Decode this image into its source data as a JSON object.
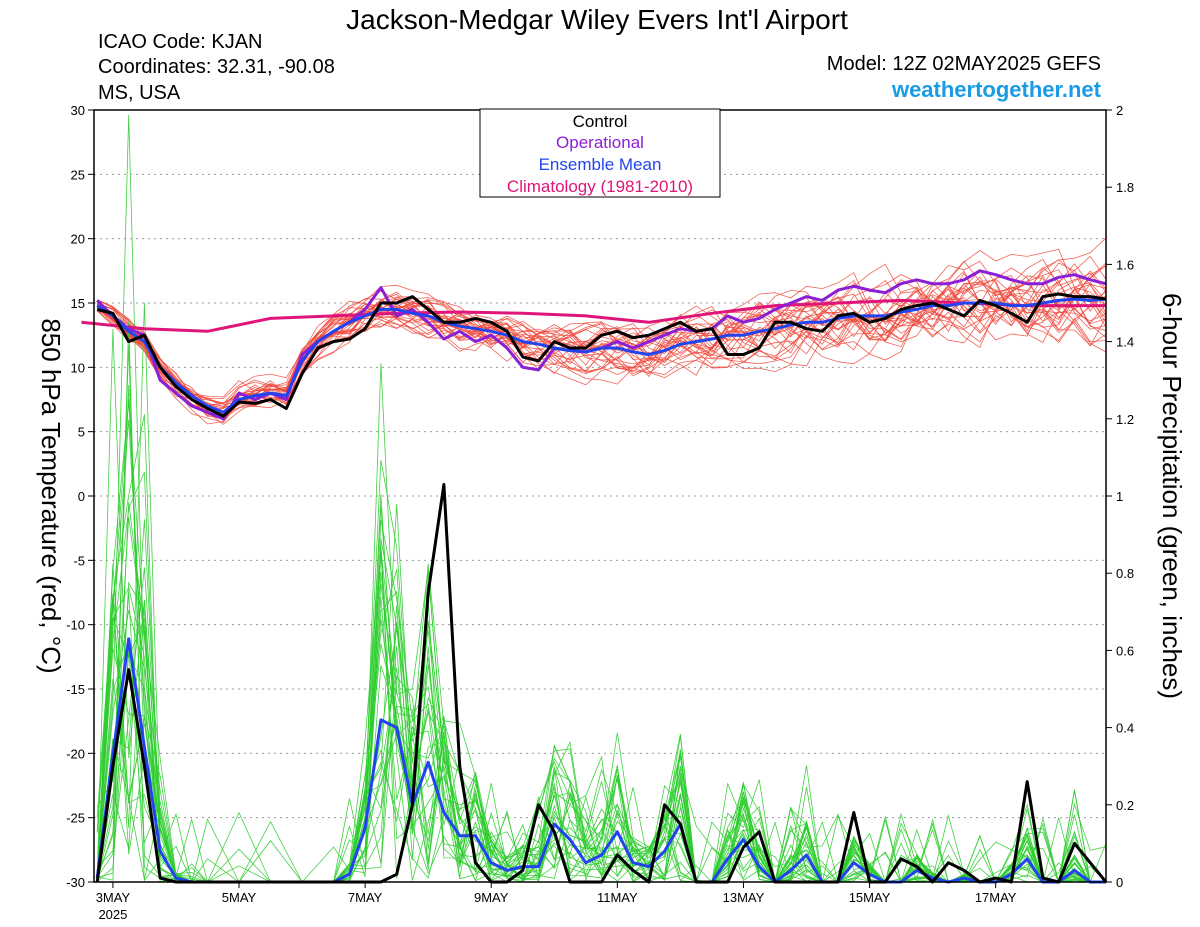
{
  "header": {
    "title": "Jackson-Medgar Wiley Evers Int'l Airport",
    "icao": "ICAO Code: KJAN",
    "coords": "Coordinates: 32.31, -90.08",
    "region": "MS, USA",
    "model": "Model: 12Z 02MAY2025 GEFS",
    "site": "weathertogether.net"
  },
  "colors": {
    "control": "#000000",
    "operational": "#8a1fd6",
    "ensemble_mean": "#2244ee",
    "climatology": "#e0157a",
    "members_temp": "#f0473a",
    "members_precip": "#2ecc2e",
    "brand": "#1a9be6"
  },
  "chart_data": {
    "type": "line",
    "left_axis": {
      "label": "850 hPa Temperature (red, °C)",
      "range": [
        -30,
        30
      ],
      "ticks": [
        "30",
        "25",
        "20",
        "15",
        "10",
        "5",
        "0",
        "-5",
        "-10",
        "-15",
        "-20",
        "-25",
        "-30"
      ]
    },
    "right_axis": {
      "label": "6-hour Precipitation (green, inches)",
      "range": [
        0,
        2
      ],
      "ticks": [
        "2",
        "1.8",
        "1.6",
        "1.4",
        "1.2",
        "1",
        "0.8",
        "0.6",
        "0.4",
        "0.2",
        "0"
      ]
    },
    "x_axis": {
      "unit": "days after 12Z 02MAY2025",
      "range": [
        0.2,
        16.25
      ],
      "ticks": [
        {
          "label": "3MAY",
          "sub": "2025",
          "x": 0.5
        },
        {
          "label": "5MAY",
          "x": 2.5
        },
        {
          "label": "7MAY",
          "x": 4.5
        },
        {
          "label": "9MAY",
          "x": 6.5
        },
        {
          "label": "11MAY",
          "x": 8.5
        },
        {
          "label": "13MAY",
          "x": 10.5
        },
        {
          "label": "15MAY",
          "x": 12.5
        },
        {
          "label": "17MAY",
          "x": 14.5
        }
      ]
    },
    "grid": "horizontal dotted",
    "legend": {
      "placement": "top-center",
      "entries": [
        "Control",
        "Operational",
        "Ensemble Mean",
        "Climatology (1981-2010)"
      ]
    },
    "series": [
      {
        "name": "Control",
        "axis": "temperature",
        "x": [
          0.25,
          0.5,
          0.75,
          1.0,
          1.25,
          1.5,
          1.75,
          2.0,
          2.25,
          2.5,
          2.75,
          3.0,
          3.25,
          3.5,
          3.75,
          4.0,
          4.25,
          4.5,
          4.75,
          5.0,
          5.25,
          5.5,
          5.75,
          6.0,
          6.25,
          6.5,
          6.75,
          7.0,
          7.25,
          7.5,
          7.75,
          8.0,
          8.25,
          8.5,
          8.75,
          9.0,
          9.25,
          9.5,
          9.75,
          10.0,
          10.25,
          10.5,
          10.75,
          11.0,
          11.25,
          11.5,
          11.75,
          12.0,
          12.25,
          12.5,
          12.75,
          13.0,
          13.25,
          13.5,
          13.75,
          14.0,
          14.25,
          14.5,
          14.75,
          15.0,
          15.25,
          15.5,
          15.75,
          16.0,
          16.25
        ],
        "y": [
          14.5,
          14.2,
          12.0,
          12.5,
          10.0,
          8.5,
          7.5,
          6.8,
          6.2,
          7.3,
          7.2,
          7.5,
          6.8,
          9.5,
          11.5,
          12.0,
          12.2,
          13.0,
          15.0,
          15.0,
          15.5,
          14.5,
          13.5,
          13.5,
          13.8,
          13.5,
          12.8,
          10.8,
          10.5,
          12.0,
          11.5,
          11.5,
          12.5,
          12.8,
          12.3,
          12.5,
          13.0,
          13.5,
          12.8,
          13.0,
          11.0,
          11.0,
          11.5,
          13.5,
          13.5,
          13.0,
          12.8,
          14.0,
          14.2,
          13.5,
          13.8,
          14.5,
          14.8,
          15.0,
          14.5,
          14.0,
          15.2,
          14.8,
          14.2,
          13.5,
          15.5,
          15.7,
          15.5,
          15.5,
          15.3
        ]
      },
      {
        "name": "Operational",
        "axis": "temperature",
        "x": [
          0.25,
          0.5,
          0.75,
          1.0,
          1.25,
          1.5,
          1.75,
          2.0,
          2.25,
          2.5,
          2.75,
          3.0,
          3.25,
          3.5,
          3.75,
          4.0,
          4.25,
          4.5,
          4.75,
          5.0,
          5.25,
          5.5,
          5.75,
          6.0,
          6.25,
          6.5,
          6.75,
          7.0,
          7.25,
          7.5,
          7.75,
          8.0,
          8.25,
          8.5,
          8.75,
          9.0,
          9.25,
          9.5,
          9.75,
          10.0,
          10.25,
          10.5,
          10.75,
          11.0,
          11.25,
          11.5,
          11.75,
          12.0,
          12.25,
          12.5,
          12.75,
          13.0,
          13.25,
          13.5,
          13.75,
          14.0,
          14.25,
          14.5,
          14.75,
          15.0,
          15.25,
          15.5,
          15.75,
          16.0,
          16.25
        ],
        "y": [
          15.2,
          14.0,
          13.0,
          12.5,
          9.0,
          8.0,
          7.0,
          6.5,
          6.0,
          8.0,
          7.5,
          8.0,
          7.5,
          11.0,
          12.0,
          12.8,
          13.5,
          14.5,
          16.2,
          14.0,
          14.5,
          13.5,
          12.2,
          12.8,
          12.0,
          12.5,
          11.5,
          10.0,
          9.8,
          11.5,
          11.3,
          11.2,
          11.5,
          12.0,
          11.5,
          12.0,
          12.5,
          13.0,
          12.8,
          13.0,
          14.0,
          13.5,
          13.8,
          14.5,
          15.0,
          15.5,
          15.2,
          16.0,
          16.3,
          16.0,
          15.8,
          16.5,
          16.8,
          16.5,
          16.5,
          16.8,
          17.5,
          17.2,
          16.8,
          16.5,
          16.5,
          17.0,
          17.2,
          16.8,
          16.5
        ]
      },
      {
        "name": "Ensemble Mean",
        "axis": "temperature",
        "x": [
          0.25,
          0.5,
          0.75,
          1.0,
          1.25,
          1.5,
          1.75,
          2.0,
          2.25,
          2.5,
          2.75,
          3.0,
          3.25,
          3.5,
          3.75,
          4.0,
          4.25,
          4.5,
          4.75,
          5.0,
          5.25,
          5.5,
          5.75,
          6.0,
          6.25,
          6.5,
          6.75,
          7.0,
          7.25,
          7.5,
          7.75,
          8.0,
          8.25,
          8.5,
          8.75,
          9.0,
          9.25,
          9.5,
          9.75,
          10.0,
          10.25,
          10.5,
          10.75,
          11.0,
          11.25,
          11.5,
          11.75,
          12.0,
          12.25,
          12.5,
          12.75,
          13.0,
          13.25,
          13.5,
          13.75,
          14.0,
          14.25,
          14.5,
          14.75,
          15.0,
          15.25,
          15.5,
          15.75,
          16.0,
          16.25
        ],
        "y": [
          14.8,
          14.0,
          12.8,
          12.0,
          10.0,
          8.8,
          7.8,
          7.0,
          6.5,
          7.5,
          7.8,
          8.0,
          7.8,
          10.5,
          12.0,
          12.8,
          13.5,
          14.0,
          14.5,
          14.5,
          14.2,
          14.0,
          13.5,
          13.2,
          13.0,
          12.8,
          12.5,
          12.0,
          11.8,
          11.5,
          11.3,
          11.2,
          11.5,
          11.5,
          11.2,
          11.0,
          11.3,
          11.8,
          12.0,
          12.2,
          12.5,
          12.5,
          12.8,
          13.0,
          13.3,
          13.5,
          13.5,
          13.8,
          14.0,
          14.0,
          14.0,
          14.3,
          14.5,
          14.8,
          14.8,
          15.0,
          15.0,
          15.0,
          14.8,
          14.8,
          15.0,
          15.2,
          15.3,
          15.2,
          15.3
        ]
      },
      {
        "name": "Climatology (1981-2010)",
        "axis": "temperature",
        "x": [
          0.0,
          1.0,
          2.0,
          3.0,
          4.0,
          5.0,
          6.0,
          7.0,
          8.0,
          9.0,
          10.0,
          11.0,
          12.0,
          13.0,
          14.0,
          15.0,
          16.25
        ],
        "y": [
          13.5,
          13.0,
          12.8,
          13.8,
          14.0,
          14.2,
          14.3,
          14.2,
          14.0,
          13.5,
          14.2,
          14.8,
          15.0,
          15.2,
          15.0,
          14.8,
          14.8
        ]
      },
      {
        "name": "Control",
        "axis": "precipitation",
        "x": [
          0.25,
          0.5,
          0.75,
          1.0,
          1.25,
          1.5,
          1.75,
          2.0,
          2.5,
          3.0,
          3.5,
          4.0,
          4.25,
          4.5,
          4.75,
          5.0,
          5.25,
          5.5,
          5.75,
          6.0,
          6.25,
          6.5,
          6.75,
          7.0,
          7.25,
          7.5,
          7.75,
          8.0,
          8.25,
          8.5,
          8.75,
          9.0,
          9.25,
          9.5,
          9.75,
          10.0,
          10.25,
          10.5,
          10.75,
          11.0,
          11.25,
          11.5,
          11.75,
          12.0,
          12.25,
          12.5,
          12.75,
          13.0,
          13.25,
          13.5,
          13.75,
          14.0,
          14.25,
          14.5,
          14.75,
          15.0,
          15.25,
          15.5,
          15.75,
          16.0,
          16.25
        ],
        "y": [
          0.0,
          0.3,
          0.55,
          0.3,
          0.01,
          0.0,
          0.0,
          0.0,
          0.0,
          0.0,
          0.0,
          0.0,
          0.0,
          0.0,
          0.0,
          0.02,
          0.2,
          0.75,
          1.03,
          0.3,
          0.05,
          0.0,
          0.0,
          0.03,
          0.2,
          0.13,
          0.0,
          0.0,
          0.0,
          0.07,
          0.03,
          0.0,
          0.2,
          0.15,
          0.0,
          0.0,
          0.0,
          0.09,
          0.13,
          0.0,
          0.0,
          0.0,
          0.0,
          0.0,
          0.18,
          0.0,
          0.0,
          0.06,
          0.04,
          0.0,
          0.05,
          0.03,
          0.0,
          0.01,
          0.0,
          0.26,
          0.01,
          0.0,
          0.1,
          0.05,
          0.0
        ]
      },
      {
        "name": "Ensemble Mean",
        "axis": "precipitation",
        "x": [
          0.25,
          0.5,
          0.75,
          1.0,
          1.25,
          1.5,
          1.75,
          2.0,
          2.5,
          3.0,
          3.5,
          4.0,
          4.25,
          4.5,
          4.75,
          5.0,
          5.25,
          5.5,
          5.75,
          6.0,
          6.25,
          6.5,
          6.75,
          7.0,
          7.25,
          7.5,
          7.75,
          8.0,
          8.25,
          8.5,
          8.75,
          9.0,
          9.25,
          9.5,
          9.75,
          10.0,
          10.25,
          10.5,
          10.75,
          11.0,
          11.25,
          11.5,
          11.75,
          12.0,
          12.25,
          12.5,
          12.75,
          13.0,
          13.25,
          13.5,
          13.75,
          14.0,
          14.25,
          14.5,
          14.75,
          15.0,
          15.25,
          15.5,
          15.75,
          16.0,
          16.25
        ],
        "y": [
          0.01,
          0.33,
          0.63,
          0.35,
          0.08,
          0.01,
          0.0,
          0.0,
          0.0,
          0.0,
          0.0,
          0.0,
          0.02,
          0.14,
          0.42,
          0.4,
          0.2,
          0.31,
          0.18,
          0.12,
          0.12,
          0.05,
          0.03,
          0.04,
          0.04,
          0.15,
          0.11,
          0.05,
          0.07,
          0.13,
          0.05,
          0.04,
          0.08,
          0.15,
          0.0,
          0.0,
          0.06,
          0.11,
          0.04,
          0.0,
          0.03,
          0.07,
          0.0,
          0.0,
          0.05,
          0.02,
          0.0,
          0.0,
          0.03,
          0.01,
          0.0,
          0.01,
          0.0,
          0.0,
          0.02,
          0.06,
          0.0,
          0.0,
          0.03,
          0.0,
          0.0
        ]
      }
    ]
  }
}
